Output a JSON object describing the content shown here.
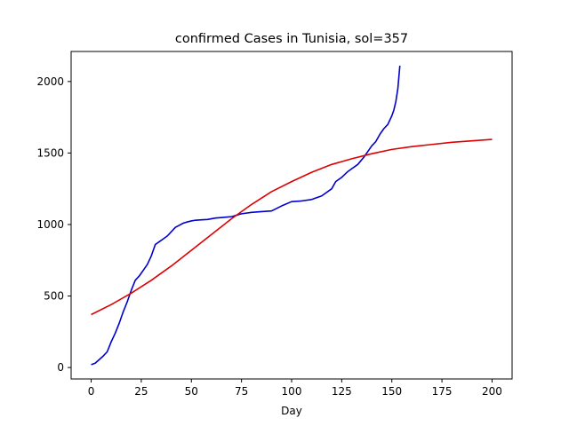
{
  "chart_data": {
    "type": "line",
    "title": "confirmed Cases in Tunisia, sol=357",
    "xlabel": "Day",
    "ylabel": "",
    "xlim": [
      -10,
      210
    ],
    "ylim": [
      -80,
      2210
    ],
    "xticks": [
      0,
      25,
      50,
      75,
      100,
      125,
      150,
      175,
      200
    ],
    "yticks": [
      0,
      500,
      1000,
      1500,
      2000
    ],
    "grid": false,
    "series": [
      {
        "color": "#0000cc",
        "x": [
          0,
          2,
          4,
          6,
          8,
          10,
          12,
          14,
          16,
          18,
          20,
          22,
          24,
          26,
          28,
          30,
          32,
          34,
          36,
          38,
          40,
          42,
          44,
          46,
          48,
          50,
          52,
          55,
          58,
          62,
          66,
          70,
          75,
          80,
          85,
          90,
          95,
          100,
          105,
          110,
          115,
          120,
          122,
          125,
          128,
          130,
          133,
          136,
          138,
          140,
          142,
          144,
          146,
          148,
          150,
          151,
          152,
          153,
          154
        ],
        "y": [
          20,
          30,
          55,
          80,
          110,
          180,
          240,
          310,
          390,
          460,
          540,
          610,
          640,
          680,
          720,
          780,
          860,
          880,
          900,
          920,
          950,
          980,
          995,
          1010,
          1018,
          1025,
          1030,
          1033,
          1035,
          1045,
          1050,
          1055,
          1075,
          1085,
          1090,
          1095,
          1130,
          1160,
          1165,
          1175,
          1200,
          1250,
          1300,
          1330,
          1370,
          1390,
          1420,
          1470,
          1510,
          1550,
          1580,
          1630,
          1670,
          1700,
          1760,
          1800,
          1860,
          1950,
          2110
        ]
      },
      {
        "color": "#dd0000",
        "x": [
          0,
          10,
          20,
          30,
          40,
          50,
          60,
          70,
          80,
          90,
          100,
          110,
          120,
          130,
          140,
          150,
          160,
          170,
          180,
          190,
          200
        ],
        "y": [
          370,
          440,
          520,
          610,
          710,
          820,
          930,
          1040,
          1140,
          1230,
          1300,
          1365,
          1420,
          1460,
          1495,
          1525,
          1545,
          1560,
          1575,
          1585,
          1595
        ]
      }
    ]
  }
}
